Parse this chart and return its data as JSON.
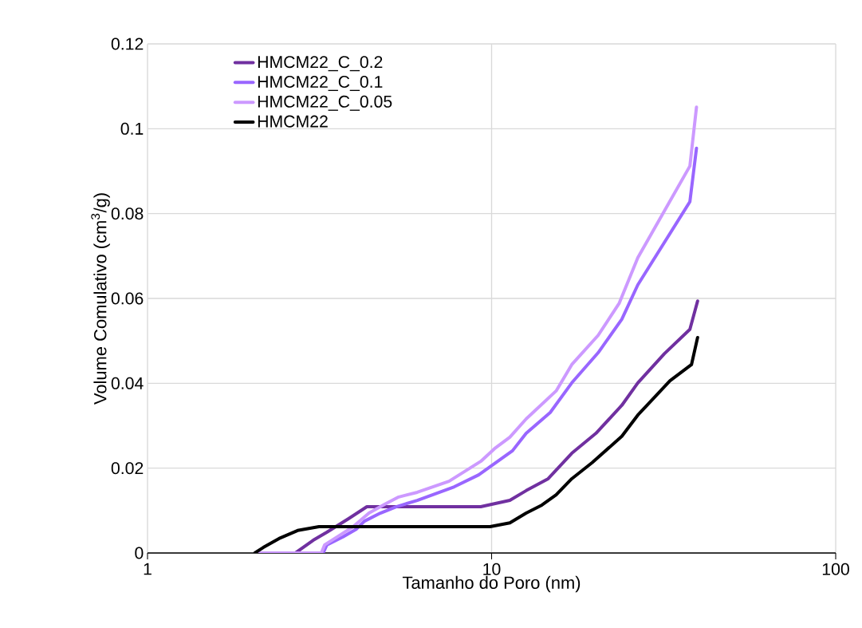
{
  "chart_data": {
    "type": "line",
    "xlabel": "Tamanho do Poro (nm)",
    "ylabel": "Volume Comulativo (cm$^{3}$/g)",
    "log": "x",
    "xlim": [
      1,
      100
    ],
    "xticks": [
      1,
      10,
      100
    ],
    "ylim": [
      0,
      0.12
    ],
    "yticks": [
      0,
      0.02,
      0.04,
      0.06,
      0.08,
      0.1,
      0.12
    ],
    "grid": true,
    "legend": "top left",
    "line_style": "solid",
    "marker": "none",
    "series": [
      {
        "name": "HMCM22_C_0.2",
        "color": "#7030a0",
        "x": [
          2.69,
          3.03,
          3.32,
          3.84,
          4.34,
          9.3,
          11.3,
          12.6,
          14.6,
          17.1,
          20.1,
          23.9,
          26.6,
          31.8,
          37.7,
          39.7
        ],
        "values": [
          0,
          0.003,
          0.0049,
          0.0081,
          0.0109,
          0.0109,
          0.0124,
          0.0147,
          0.0175,
          0.0235,
          0.0282,
          0.0348,
          0.0401,
          0.047,
          0.0527,
          0.0594
        ]
      },
      {
        "name": "HMCM22_C_0.1",
        "color": "#9966ff",
        "x": [
          2.1,
          3.24,
          3.32,
          3.7,
          4.04,
          4.27,
          4.75,
          5.28,
          6.08,
          7.79,
          9.17,
          11.5,
          12.6,
          14.8,
          17.1,
          20.4,
          23.9,
          26.6,
          37.7,
          39.4
        ],
        "values": [
          0,
          0,
          0.0019,
          0.0038,
          0.0056,
          0.0075,
          0.0094,
          0.0109,
          0.0124,
          0.0156,
          0.0184,
          0.0241,
          0.0282,
          0.0331,
          0.0401,
          0.0472,
          0.0551,
          0.0632,
          0.0828,
          0.0954
        ]
      },
      {
        "name": "HMCM22_C_0.05",
        "color": "#cc99ff",
        "x": [
          2.1,
          3.2,
          3.27,
          3.64,
          3.96,
          4.4,
          4.9,
          5.37,
          6.08,
          7.52,
          9.3,
          10.2,
          11.3,
          12.6,
          15.4,
          17.1,
          20.4,
          23.5,
          26.6,
          37.7,
          39.4
        ],
        "values": [
          0,
          0,
          0.0019,
          0.0043,
          0.0062,
          0.0094,
          0.0115,
          0.0132,
          0.0143,
          0.0169,
          0.0216,
          0.0246,
          0.0273,
          0.0316,
          0.0382,
          0.0444,
          0.0513,
          0.0589,
          0.0696,
          0.0912,
          0.1051
        ]
      },
      {
        "name": "HMCM22",
        "color": "#000000",
        "x": [
          2.05,
          2.17,
          2.41,
          2.73,
          3.15,
          9.9,
          11.3,
          12.6,
          14.0,
          15.4,
          17.1,
          19.6,
          23.9,
          26.6,
          33.0,
          38.1,
          39.7
        ],
        "values": [
          0,
          0.0013,
          0.0034,
          0.0053,
          0.0062,
          0.0062,
          0.0071,
          0.0094,
          0.0113,
          0.0137,
          0.0175,
          0.0213,
          0.0275,
          0.0325,
          0.0406,
          0.0444,
          0.0508
        ]
      }
    ]
  }
}
